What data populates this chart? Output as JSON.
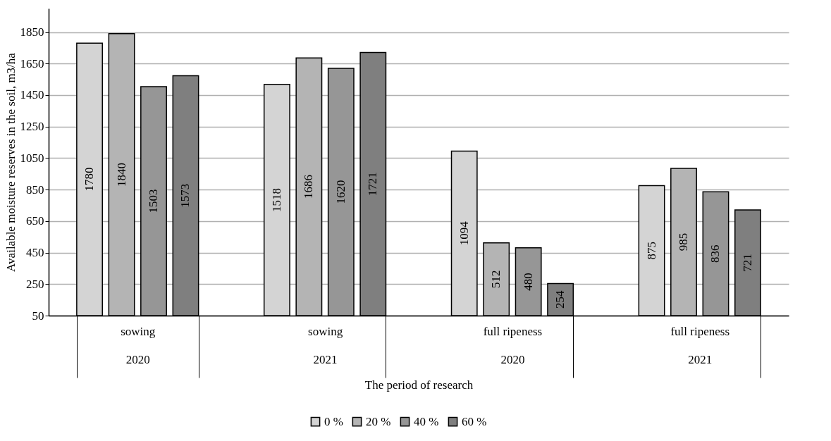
{
  "chart_data": {
    "type": "bar",
    "xlabel": "The period of research",
    "ylabel": "Available moisture reserves in the soil, m3/ha",
    "categories": [
      "sowing\n2020",
      "sowing\n2021",
      "full ripeness\n2020",
      "full ripeness\n2021"
    ],
    "series": [
      {
        "name": "0 %",
        "color": "#d4d4d4",
        "values": [
          1780,
          1518,
          1094,
          875
        ]
      },
      {
        "name": "20 %",
        "color": "#b4b4b4",
        "values": [
          1840,
          1686,
          512,
          985
        ]
      },
      {
        "name": "40 %",
        "color": "#969696",
        "values": [
          1503,
          1620,
          480,
          836
        ]
      },
      {
        "name": "60 %",
        "color": "#7f7f7f",
        "values": [
          1573,
          1721,
          254,
          721
        ]
      }
    ],
    "ylim": [
      50,
      2000
    ],
    "yticks": [
      50,
      250,
      450,
      650,
      850,
      1050,
      1250,
      1450,
      1650,
      1850
    ],
    "grid": "y",
    "legend": "bottom",
    "data_labels": true
  }
}
